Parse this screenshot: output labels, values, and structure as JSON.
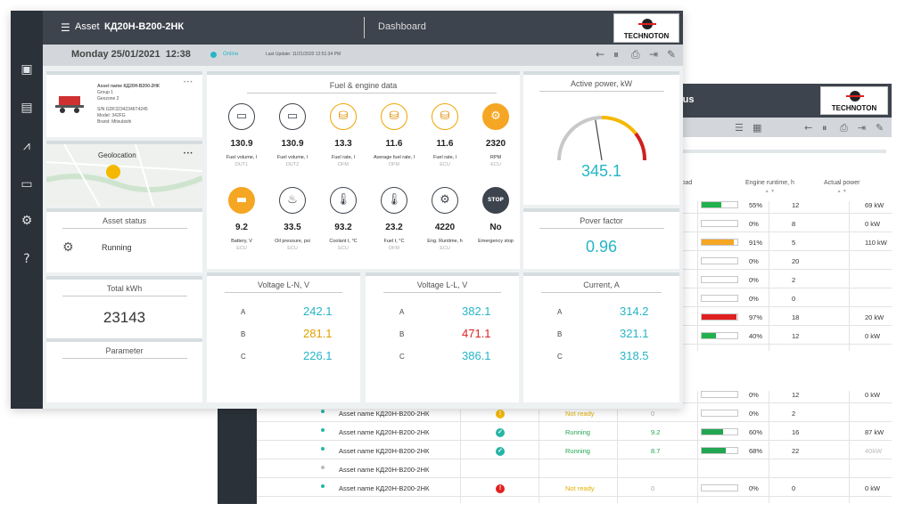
{
  "back": {
    "title_fragment": "tus",
    "logo_text": "TECHNOTON",
    "headers": [
      "ngine load",
      "Engine runtime, h",
      "Actual power"
    ],
    "rows_top": [
      {
        "load_pct": 55,
        "load_text": "55%",
        "color": "#22b14c",
        "runtime": "12",
        "power": "69 kW"
      },
      {
        "load_pct": 0,
        "load_text": "0%",
        "color": "#22b14c",
        "runtime": "8",
        "power": "0 kW"
      },
      {
        "load_pct": 91,
        "load_text": "91%",
        "color": "#f5a623",
        "runtime": "5",
        "power": "110 kW"
      },
      {
        "load_pct": 0,
        "load_text": "0%",
        "color": "#22b14c",
        "runtime": "20",
        "power": ""
      },
      {
        "load_pct": 0,
        "load_text": "0%",
        "color": "#22b14c",
        "runtime": "2",
        "power": ""
      },
      {
        "load_pct": 0,
        "load_text": "0%",
        "color": "#22b14c",
        "runtime": "0",
        "power": ""
      },
      {
        "load_pct": 97,
        "load_text": "97%",
        "color": "#e02020",
        "runtime": "18",
        "power": "20 kW"
      },
      {
        "load_pct": 40,
        "load_text": "40%",
        "color": "#22b14c",
        "runtime": "12",
        "power": "0 kW"
      }
    ],
    "rows_bottom": [
      {
        "name": "",
        "status": "",
        "status_color": "",
        "fuel": "",
        "icon": "",
        "load_pct": 0,
        "load_text": "0%",
        "runtime": "12",
        "power": "0 kW",
        "color": "#22b14c",
        "dot": false
      },
      {
        "name": "Asset name КД20Н-В200-2НК",
        "status": "Not ready",
        "status_color": "#e0b000",
        "fuel": "0",
        "icon": "!",
        "icon_color": "#f5b800",
        "load_pct": 0,
        "load_text": "0%",
        "runtime": "2",
        "power": "",
        "color": "#22b14c",
        "dot": true
      },
      {
        "name": "Asset name КД20Н-В200-2НК",
        "status": "Running",
        "status_color": "#22a652",
        "fuel": "9.2",
        "icon": "✓",
        "icon_color": "#26b5a6",
        "load_pct": 60,
        "load_text": "60%",
        "runtime": "16",
        "power": "87 kW",
        "color": "#22a652",
        "dot": true
      },
      {
        "name": "Asset name КД20Н-В200-2НК",
        "status": "Running",
        "status_color": "#22a652",
        "fuel": "8.7",
        "icon": "✓",
        "icon_color": "#26b5a6",
        "load_pct": 68,
        "load_text": "68%",
        "runtime": "22",
        "power": "40kW",
        "color": "#22a652",
        "dot": true
      },
      {
        "name": "Asset name КД20Н-В200-2НК",
        "status": "",
        "status_color": "",
        "fuel": "",
        "icon": "",
        "load_pct": -1,
        "load_text": "",
        "runtime": "",
        "power": "",
        "color": "",
        "dot": true
      },
      {
        "name": "Asset name КД20Н-В200-2НК",
        "status": "Not ready",
        "status_color": "#e0b000",
        "fuel": "0",
        "icon": "!",
        "icon_color": "#e02020",
        "load_pct": 0,
        "load_text": "0%",
        "runtime": "0",
        "power": "0 kW",
        "color": "#22b14c",
        "dot": true
      }
    ]
  },
  "front": {
    "header": {
      "asset_label": "Asset",
      "asset_name": "КД20Н-В200-2НК",
      "dashboard": "Dashboard",
      "logo_text": "TECHNOTON"
    },
    "toolbar": {
      "date": "Monday 25/01/2021  12:38",
      "status": "Online",
      "last_update": "Last Update: 11/21/2020 12:51:34 PM"
    },
    "asset_info": {
      "name": "Asset name КД20Н-В200-2НК",
      "group": "Group 1",
      "geozone": "Geozone 2",
      "sn": "S/N GDF32342346T4245",
      "model": "Model: 342FG",
      "brand": "Brand: Mitsubishi",
      "more": "• • •"
    },
    "geolocation": {
      "title": "Geolocation",
      "more": "• • •"
    },
    "asset_status": {
      "title": "Asset status",
      "value": "Running"
    },
    "total_kwh": {
      "title": "Total kWh",
      "value": "23143"
    },
    "parameter": {
      "title": "Parameter"
    },
    "fuel_engine": {
      "title": "Fuel & engine data",
      "items": [
        {
          "value": "130.9",
          "label": "Fuel volume, l",
          "source": "DUT1",
          "icon": "▭",
          "style": "gray"
        },
        {
          "value": "130.9",
          "label": "Fuel volume, l",
          "source": "DUT2",
          "icon": "▭",
          "style": "gray"
        },
        {
          "value": "13.3",
          "label": "Fuel rate, l",
          "source": "DFM",
          "icon": "⛁",
          "style": "org"
        },
        {
          "value": "11.6",
          "label": "Average fuel rate, l",
          "source": "DFM",
          "icon": "⛁",
          "style": "org"
        },
        {
          "value": "11.6",
          "label": "Fuel rate, l",
          "source": "ECU",
          "icon": "⛁",
          "style": "org"
        },
        {
          "value": "2320",
          "label": "RPM",
          "source": "ECU",
          "icon": "⚙",
          "style": "orgf"
        },
        {
          "value": "9.2",
          "label": "Battery, V",
          "source": "ECU",
          "icon": "▬",
          "style": "orgf"
        },
        {
          "value": "33.5",
          "label": "Oil pressure, psi",
          "source": "ECU",
          "icon": "♨",
          "style": "gray"
        },
        {
          "value": "93.2",
          "label": "Coolant t, °C",
          "source": "ECU",
          "icon": "🌡",
          "style": "gray"
        },
        {
          "value": "23.2",
          "label": "Fuel t, °C",
          "source": "DFM",
          "icon": "🌡",
          "style": "gray"
        },
        {
          "value": "4220",
          "label": "Eng. Runtime, h",
          "source": "ECU",
          "icon": "⚙",
          "style": "gray"
        },
        {
          "value": "No",
          "label": "Emergency stop",
          "source": "",
          "icon": "STOP",
          "style": "dark"
        }
      ]
    },
    "active_power": {
      "title": "Active power, kW",
      "value": "345.1",
      "gauge_fraction": 0.45
    },
    "power_factor": {
      "title": "Pover factor",
      "value": "0.96"
    },
    "voltage_ln": {
      "title": "Voltage L-N, V",
      "rows": [
        {
          "label": "A",
          "value": "242.1",
          "color": "#26b5c6"
        },
        {
          "label": "B",
          "value": "281.1",
          "color": "#e0a000"
        },
        {
          "label": "C",
          "value": "226.1",
          "color": "#26b5c6"
        }
      ]
    },
    "voltage_ll": {
      "title": "Voltage L-L, V",
      "rows": [
        {
          "label": "A",
          "value": "382.1",
          "color": "#26b5c6"
        },
        {
          "label": "B",
          "value": "471.1",
          "color": "#e02020"
        },
        {
          "label": "C",
          "value": "386.1",
          "color": "#26b5c6"
        }
      ]
    },
    "current": {
      "title": "Current, A",
      "rows": [
        {
          "label": "A",
          "value": "314.2",
          "color": "#26b5c6"
        },
        {
          "label": "B",
          "value": "321.1",
          "color": "#26b5c6"
        },
        {
          "label": "C",
          "value": "318.5",
          "color": "#26b5c6"
        }
      ]
    },
    "sidebar_icons": [
      "dashboard-icon",
      "report-icon",
      "chart-icon",
      "message-icon",
      "settings-icon",
      "help-icon"
    ]
  }
}
